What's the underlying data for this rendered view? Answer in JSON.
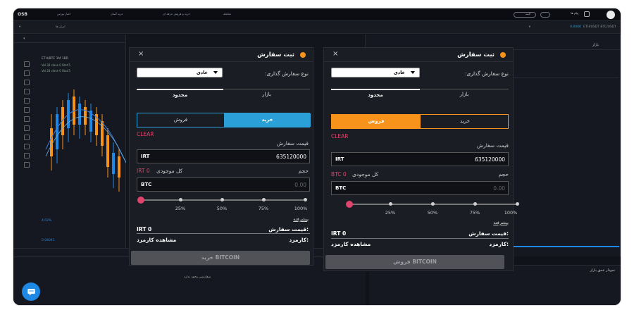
{
  "topbar": {
    "logo": "OSB",
    "nav_items": [
      "اخبار بورس",
      "خرید آسان",
      "خرید و فروش حرفه ای",
      "معامله"
    ],
    "account_pill": "لایت",
    "notifications": "پیام ها"
  },
  "subbar": {
    "tools_label": "ابزار ها",
    "pair_label": "ETH/USDT BTC/USDT",
    "price_label": "0.0000"
  },
  "chart": {
    "ohlc_line": "ETH/BTC 1M 1BR",
    "indicator_1": "Vol 30 close 0 Stat 5",
    "indicator_2": "Vol 20 close 0 Stat 5",
    "price_tag": "0.04041",
    "change": "4.02%"
  },
  "left_tabs": {
    "tab_depth": "نمودار عمیق",
    "tab_order": "ثبت سفارش"
  },
  "order_left": {
    "title": "ثبت سفارش",
    "type_label": "نوع سفارش گذاری:",
    "type_value": "عادی",
    "tab_market": "بازار",
    "tab_limit": "محدود",
    "buy": "خرید",
    "sell": "فروش",
    "clear": "CLEAR",
    "price_label": "قیمت سفارش",
    "price_unit": "IRT",
    "price_value": "635120000",
    "volume_label": "حجم",
    "balance_label": "کل موجودی",
    "balance_value": "IRT 0",
    "volume_unit": "BTC",
    "volume_placeholder": "0.00",
    "percents": [
      "25%",
      "50%",
      "75%",
      "100%"
    ],
    "advanced": "پیشرفته",
    "order_price_label": "قیمت سفارش:",
    "order_price_value": "IRT 0",
    "fee_label": "کارمزد:",
    "fee_link": "مشاهده کارمزد",
    "submit": "خرید BITCOIN",
    "accent": "#2a9fd8"
  },
  "order_right": {
    "title": "ثبت سفارش",
    "type_label": "نوع سفارش گذاری:",
    "type_value": "عادی",
    "tab_market": "بازار",
    "tab_limit": "محدود",
    "buy": "خرید",
    "sell": "فروش",
    "clear": "CLEAR",
    "price_label": "قیمت سفارش",
    "price_unit": "IRT",
    "price_value": "635120000",
    "volume_label": "حجم",
    "balance_label": "کل موجودی",
    "balance_value": "BTC 0",
    "volume_unit": "BTC",
    "volume_placeholder": "0.00",
    "percents": [
      "25%",
      "50%",
      "75%",
      "100%"
    ],
    "advanced": "پیشرفته",
    "order_price_label": "قیمت سفارش:",
    "order_price_value": "IRT 0",
    "fee_label": "کارمزد:",
    "fee_link": "مشاهده کارمزد",
    "submit": "فروش BITCOIN",
    "accent": "#f7931a"
  },
  "right_pane": {
    "tab_market": "بازار",
    "bottom_label": "نمودار عمق بازار"
  },
  "bottom": {
    "no_orders": "سفارشی وجود ندارد"
  }
}
